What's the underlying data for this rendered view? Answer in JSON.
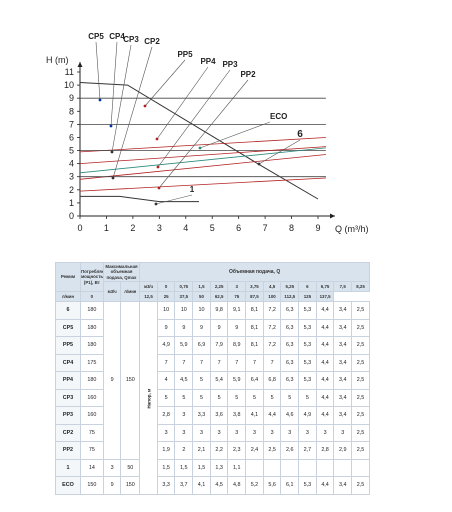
{
  "chart_data": {
    "type": "line",
    "xlabel": "Q (m³/h)",
    "ylabel": "H (m)",
    "xlim": [
      0,
      10
    ],
    "ylim": [
      0,
      11
    ],
    "x_ticks": [
      0,
      1,
      2,
      3,
      4,
      5,
      6,
      7,
      8,
      9
    ],
    "y_ticks": [
      0,
      1,
      2,
      3,
      4,
      5,
      6,
      7,
      8,
      9,
      10,
      11
    ],
    "grid": false,
    "series": [
      {
        "name": "6",
        "x": [
          0,
          1.8,
          6.8,
          9.0
        ],
        "y": [
          10.2,
          10.0,
          3.9,
          1.3
        ]
      },
      {
        "name": "CP5",
        "x": [
          0,
          9.3
        ],
        "y": [
          9.0,
          9.0
        ]
      },
      {
        "name": "CP4",
        "x": [
          0,
          9.3
        ],
        "y": [
          7.0,
          7.0
        ]
      },
      {
        "name": "PP5",
        "x": [
          0,
          9.3
        ],
        "y": [
          4.9,
          6.0
        ]
      },
      {
        "name": "CP3",
        "x": [
          0,
          9.3
        ],
        "y": [
          5.0,
          5.0
        ]
      },
      {
        "name": "PP4",
        "x": [
          0,
          9.3
        ],
        "y": [
          4.0,
          5.3
        ]
      },
      {
        "name": "PP3",
        "x": [
          0,
          9.3
        ],
        "y": [
          2.8,
          4.7
        ]
      },
      {
        "name": "CP2",
        "x": [
          0,
          9.3
        ],
        "y": [
          3.0,
          3.0
        ]
      },
      {
        "name": "PP2",
        "x": [
          0,
          9.3
        ],
        "y": [
          1.9,
          2.9
        ]
      },
      {
        "name": "ECO",
        "x": [
          0,
          9.3
        ],
        "y": [
          3.3,
          5.2
        ]
      },
      {
        "name": "1",
        "x": [
          0,
          1.5,
          3.0,
          4.5
        ],
        "y": [
          1.5,
          1.5,
          1.1,
          1.1
        ]
      }
    ],
    "annotations": [
      "CP5",
      "CP4",
      "CP3",
      "CP2",
      "PP5",
      "PP4",
      "PP3",
      "PP2",
      "ECO",
      "6",
      "1"
    ],
    "table": {
      "header": {
        "mode": "Режим",
        "power": "Потребляемая мощность (P1), Вт",
        "max": "Максимальная объемная подача, Qmax",
        "max_units": [
          "м3/ч",
          "л/мин"
        ],
        "flow_title": "Объемная подача, Q",
        "flow_units": [
          "м3/ч",
          "л/мин"
        ],
        "flow_m3h": [
          "0",
          "0,75",
          "1,5",
          "2,25",
          "3",
          "3,75",
          "4,5",
          "5,25",
          "6",
          "6,75",
          "7,5",
          "8,25"
        ],
        "flow_lmin": [
          "0",
          "12,5",
          "25",
          "37,5",
          "50",
          "62,5",
          "75",
          "87,5",
          "100",
          "112,5",
          "125",
          "137,5"
        ],
        "head_axis": "Напор, м"
      },
      "merged_qmax_m3h": "9",
      "merged_qmax_lmin": "150",
      "rows": [
        {
          "mode": "6",
          "power": "180",
          "values": [
            "10",
            "10",
            "10",
            "9,8",
            "9,1",
            "8,1",
            "7,2",
            "6,3",
            "5,3",
            "4,4",
            "3,4",
            "2,5"
          ]
        },
        {
          "mode": "CP5",
          "power": "180",
          "values": [
            "9",
            "9",
            "9",
            "9",
            "9",
            "8,1",
            "7,2",
            "6,3",
            "5,3",
            "4,4",
            "3,4",
            "2,5"
          ]
        },
        {
          "mode": "PP5",
          "power": "180",
          "values": [
            "4,9",
            "5,9",
            "6,9",
            "7,9",
            "8,9",
            "8,1",
            "7,2",
            "6,3",
            "5,3",
            "4,4",
            "3,4",
            "2,5"
          ]
        },
        {
          "mode": "CP4",
          "power": "175",
          "values": [
            "7",
            "7",
            "7",
            "7",
            "7",
            "7",
            "7",
            "6,3",
            "5,3",
            "4,4",
            "3,4",
            "2,5"
          ]
        },
        {
          "mode": "PP4",
          "power": "180",
          "values": [
            "4",
            "4,5",
            "5",
            "5,4",
            "5,9",
            "6,4",
            "6,8",
            "6,3",
            "5,3",
            "4,4",
            "3,4",
            "2,5"
          ]
        },
        {
          "mode": "CP3",
          "power": "160",
          "values": [
            "5",
            "5",
            "5",
            "5",
            "5",
            "5",
            "5",
            "5",
            "5",
            "4,4",
            "3,4",
            "2,5"
          ]
        },
        {
          "mode": "PP3",
          "power": "160",
          "values": [
            "2,8",
            "3",
            "3,3",
            "3,6",
            "3,8",
            "4,1",
            "4,4",
            "4,6",
            "4,9",
            "4,4",
            "3,4",
            "2,5"
          ]
        },
        {
          "mode": "CP2",
          "power": "75",
          "values": [
            "3",
            "3",
            "3",
            "3",
            "3",
            "3",
            "3",
            "3",
            "3",
            "3",
            "3",
            "2,5"
          ]
        },
        {
          "mode": "PP2",
          "power": "75",
          "values": [
            "1,9",
            "2",
            "2,1",
            "2,2",
            "2,3",
            "2,4",
            "2,5",
            "2,6",
            "2,7",
            "2,8",
            "2,9",
            "2,5"
          ]
        },
        {
          "mode": "1",
          "power": "14",
          "qmax_m3h": "3",
          "qmax_lmin": "50",
          "values": [
            "1,5",
            "1,5",
            "1,5",
            "1,3",
            "1,1",
            "",
            "",
            "",
            "",
            "",
            "",
            ""
          ]
        },
        {
          "mode": "ECO",
          "power": "150",
          "qmax_m3h": "9",
          "qmax_lmin": "150",
          "values": [
            "3,3",
            "3,7",
            "4,1",
            "4,5",
            "4,8",
            "5,2",
            "5,6",
            "6,1",
            "5,3",
            "4,4",
            "3,4",
            "2,5"
          ]
        }
      ]
    }
  },
  "colors": {
    "axis": "#222222",
    "curve_6": "#333333",
    "cp_lines": "#444444",
    "pp_lines": "#b22222",
    "eco_line": "#2a8a7a",
    "leader": "#444444",
    "table_header_bg": "#d9e3ee",
    "table_border": "#c8d3df"
  }
}
